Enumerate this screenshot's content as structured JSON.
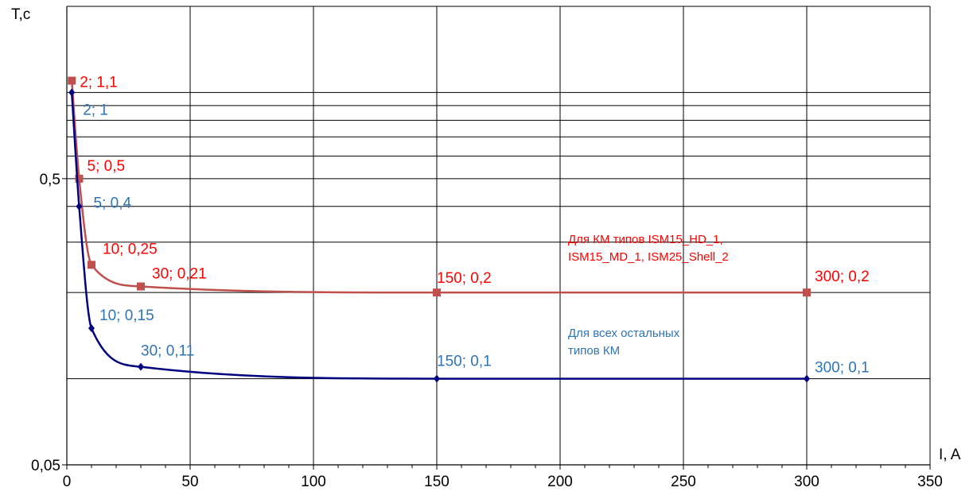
{
  "chart_data": {
    "type": "line",
    "xlabel": "I, A",
    "ylabel": "T,c",
    "xlim": [
      0,
      350
    ],
    "ylim": [
      0.05,
      2
    ],
    "y_scale": "log",
    "grid": true,
    "x_ticks": [
      "0",
      "50",
      "100",
      "150",
      "200",
      "250",
      "300",
      "350"
    ],
    "y_ticks": [
      "0,05",
      "0,5"
    ],
    "series": [
      {
        "color": "#c0504d",
        "marker": "square",
        "points": [
          {
            "x": 2,
            "y": 1.1,
            "label": "2; 1,1"
          },
          {
            "x": 5,
            "y": 0.5,
            "label": "5; 0,5"
          },
          {
            "x": 10,
            "y": 0.25,
            "label": "10; 0,25"
          },
          {
            "x": 30,
            "y": 0.21,
            "label": "30; 0,21"
          },
          {
            "x": 150,
            "y": 0.2,
            "label": "150; 0,2"
          },
          {
            "x": 300,
            "y": 0.2,
            "label": "300; 0,2"
          }
        ]
      },
      {
        "color": "#000080",
        "marker": "diamond",
        "points": [
          {
            "x": 2,
            "y": 1,
            "label": "2; 1"
          },
          {
            "x": 5,
            "y": 0.4,
            "label": "5; 0,4"
          },
          {
            "x": 10,
            "y": 0.15,
            "label": "10; 0,15"
          },
          {
            "x": 30,
            "y": 0.11,
            "label": "30; 0,11"
          },
          {
            "x": 150,
            "y": 0.1,
            "label": "150; 0,1"
          },
          {
            "x": 300,
            "y": 0.1,
            "label": "300; 0,1"
          }
        ]
      }
    ],
    "annotations": [
      {
        "lines": [
          "Для КМ типов ISM15_HD_1,",
          "ISM15_MD_1, ISM25_Shell_2"
        ],
        "color": "#ff0000"
      },
      {
        "lines": [
          "Для всех остальных",
          "типов КМ"
        ],
        "color": "#2e75b6"
      }
    ],
    "label_colors": {
      "red_series": "#ff0000",
      "blue_series": "#2e75b6"
    }
  }
}
